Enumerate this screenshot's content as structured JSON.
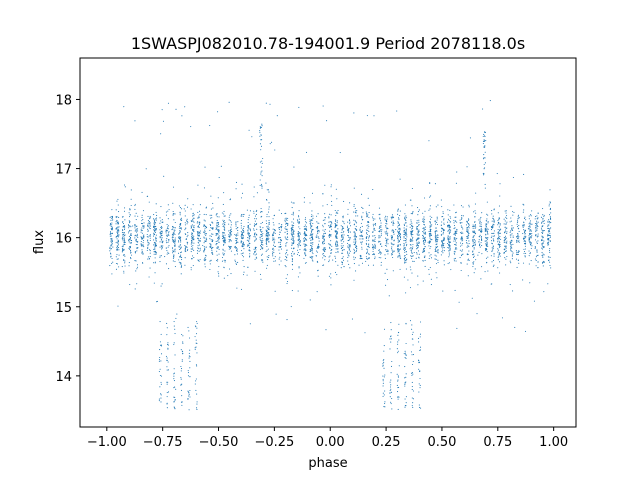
{
  "chart_data": {
    "type": "scatter",
    "title": "1SWASPJ082010.78-194001.9 Period 2078118.0s",
    "xlabel": "phase",
    "ylabel": "flux",
    "xlim": [
      -1.12,
      1.1
    ],
    "ylim": [
      13.26,
      18.6
    ],
    "xticks": [
      -1.0,
      -0.75,
      -0.5,
      -0.25,
      0.0,
      0.25,
      0.5,
      0.75,
      1.0
    ],
    "xtick_labels": [
      "−1.00",
      "−0.75",
      "−0.50",
      "−0.25",
      "0.00",
      "0.25",
      "0.50",
      "0.75",
      "1.00"
    ],
    "yticks": [
      14,
      15,
      16,
      17,
      18
    ],
    "ytick_labels": [
      "14",
      "15",
      "16",
      "17",
      "18"
    ],
    "grid": false,
    "marker_color": "#1f77b4",
    "series": [
      {
        "description": "folded light curve (phase shown twice: -1..0 and 0..1)",
        "main_band": {
          "flux_center": 16.0,
          "flux_spread": 0.2,
          "phase_range": [
            -0.98,
            1.0
          ]
        },
        "upper_outliers": [
          {
            "x": -0.31,
            "y_range": [
              16.7,
              17.65
            ]
          },
          {
            "x": 0.69,
            "y_range": [
              16.7,
              17.65
            ]
          }
        ],
        "low_states": [
          {
            "x_range": [
              -0.76,
              -0.6
            ],
            "y_range": [
              13.5,
              14.8
            ]
          },
          {
            "x_range": [
              0.24,
              0.4
            ],
            "y_range": [
              13.5,
              14.8
            ]
          }
        ]
      }
    ]
  }
}
